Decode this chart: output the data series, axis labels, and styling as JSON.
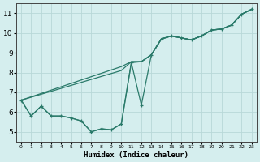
{
  "xlabel": "Humidex (Indice chaleur)",
  "bg_color": "#d5eeee",
  "grid_color": "#b8d8d8",
  "line_color": "#2a7a6a",
  "xlim": [
    -0.5,
    23.5
  ],
  "ylim": [
    4.5,
    11.5
  ],
  "xticks": [
    0,
    1,
    2,
    3,
    4,
    5,
    6,
    7,
    8,
    9,
    10,
    11,
    12,
    13,
    14,
    15,
    16,
    17,
    18,
    19,
    20,
    21,
    22,
    23
  ],
  "yticks": [
    5,
    6,
    7,
    8,
    9,
    10,
    11
  ],
  "series": [
    {
      "x": [
        0,
        1,
        2,
        3,
        4,
        5,
        6,
        7,
        8,
        9,
        10,
        11,
        12,
        13,
        14,
        15,
        16,
        17,
        18,
        19,
        20,
        21,
        22,
        23
      ],
      "y": [
        6.6,
        5.8,
        6.3,
        5.8,
        5.8,
        5.7,
        5.55,
        5.0,
        5.15,
        5.1,
        5.4,
        8.5,
        6.35,
        8.9,
        9.7,
        9.85,
        9.75,
        9.65,
        9.85,
        10.15,
        10.2,
        10.4,
        10.95,
        11.2
      ],
      "marker": "+"
    },
    {
      "x": [
        0,
        10,
        11,
        12,
        13,
        14,
        15,
        16,
        17,
        18,
        19,
        20,
        21,
        22,
        23
      ],
      "y": [
        6.6,
        8.3,
        8.55,
        8.55,
        8.9,
        9.7,
        9.85,
        9.75,
        9.65,
        9.85,
        10.15,
        10.2,
        10.4,
        10.95,
        11.2
      ],
      "marker": null
    },
    {
      "x": [
        0,
        10,
        11,
        12,
        13,
        14,
        15,
        16,
        17,
        18,
        19,
        20,
        21,
        22,
        23
      ],
      "y": [
        6.6,
        8.1,
        8.55,
        8.55,
        8.9,
        9.7,
        9.85,
        9.75,
        9.65,
        9.85,
        10.15,
        10.2,
        10.4,
        10.95,
        11.2
      ],
      "marker": null
    },
    {
      "x": [
        0,
        1,
        2,
        3,
        4,
        5,
        6,
        7,
        8,
        9,
        10,
        11,
        12,
        13,
        14,
        15,
        16,
        17,
        18,
        19,
        20,
        21,
        22,
        23
      ],
      "y": [
        6.6,
        5.8,
        6.3,
        5.8,
        5.8,
        5.7,
        5.55,
        5.0,
        5.15,
        5.1,
        5.4,
        8.5,
        8.55,
        8.9,
        9.7,
        9.85,
        9.75,
        9.65,
        9.85,
        10.15,
        10.2,
        10.4,
        10.95,
        11.2
      ],
      "marker": null
    }
  ]
}
